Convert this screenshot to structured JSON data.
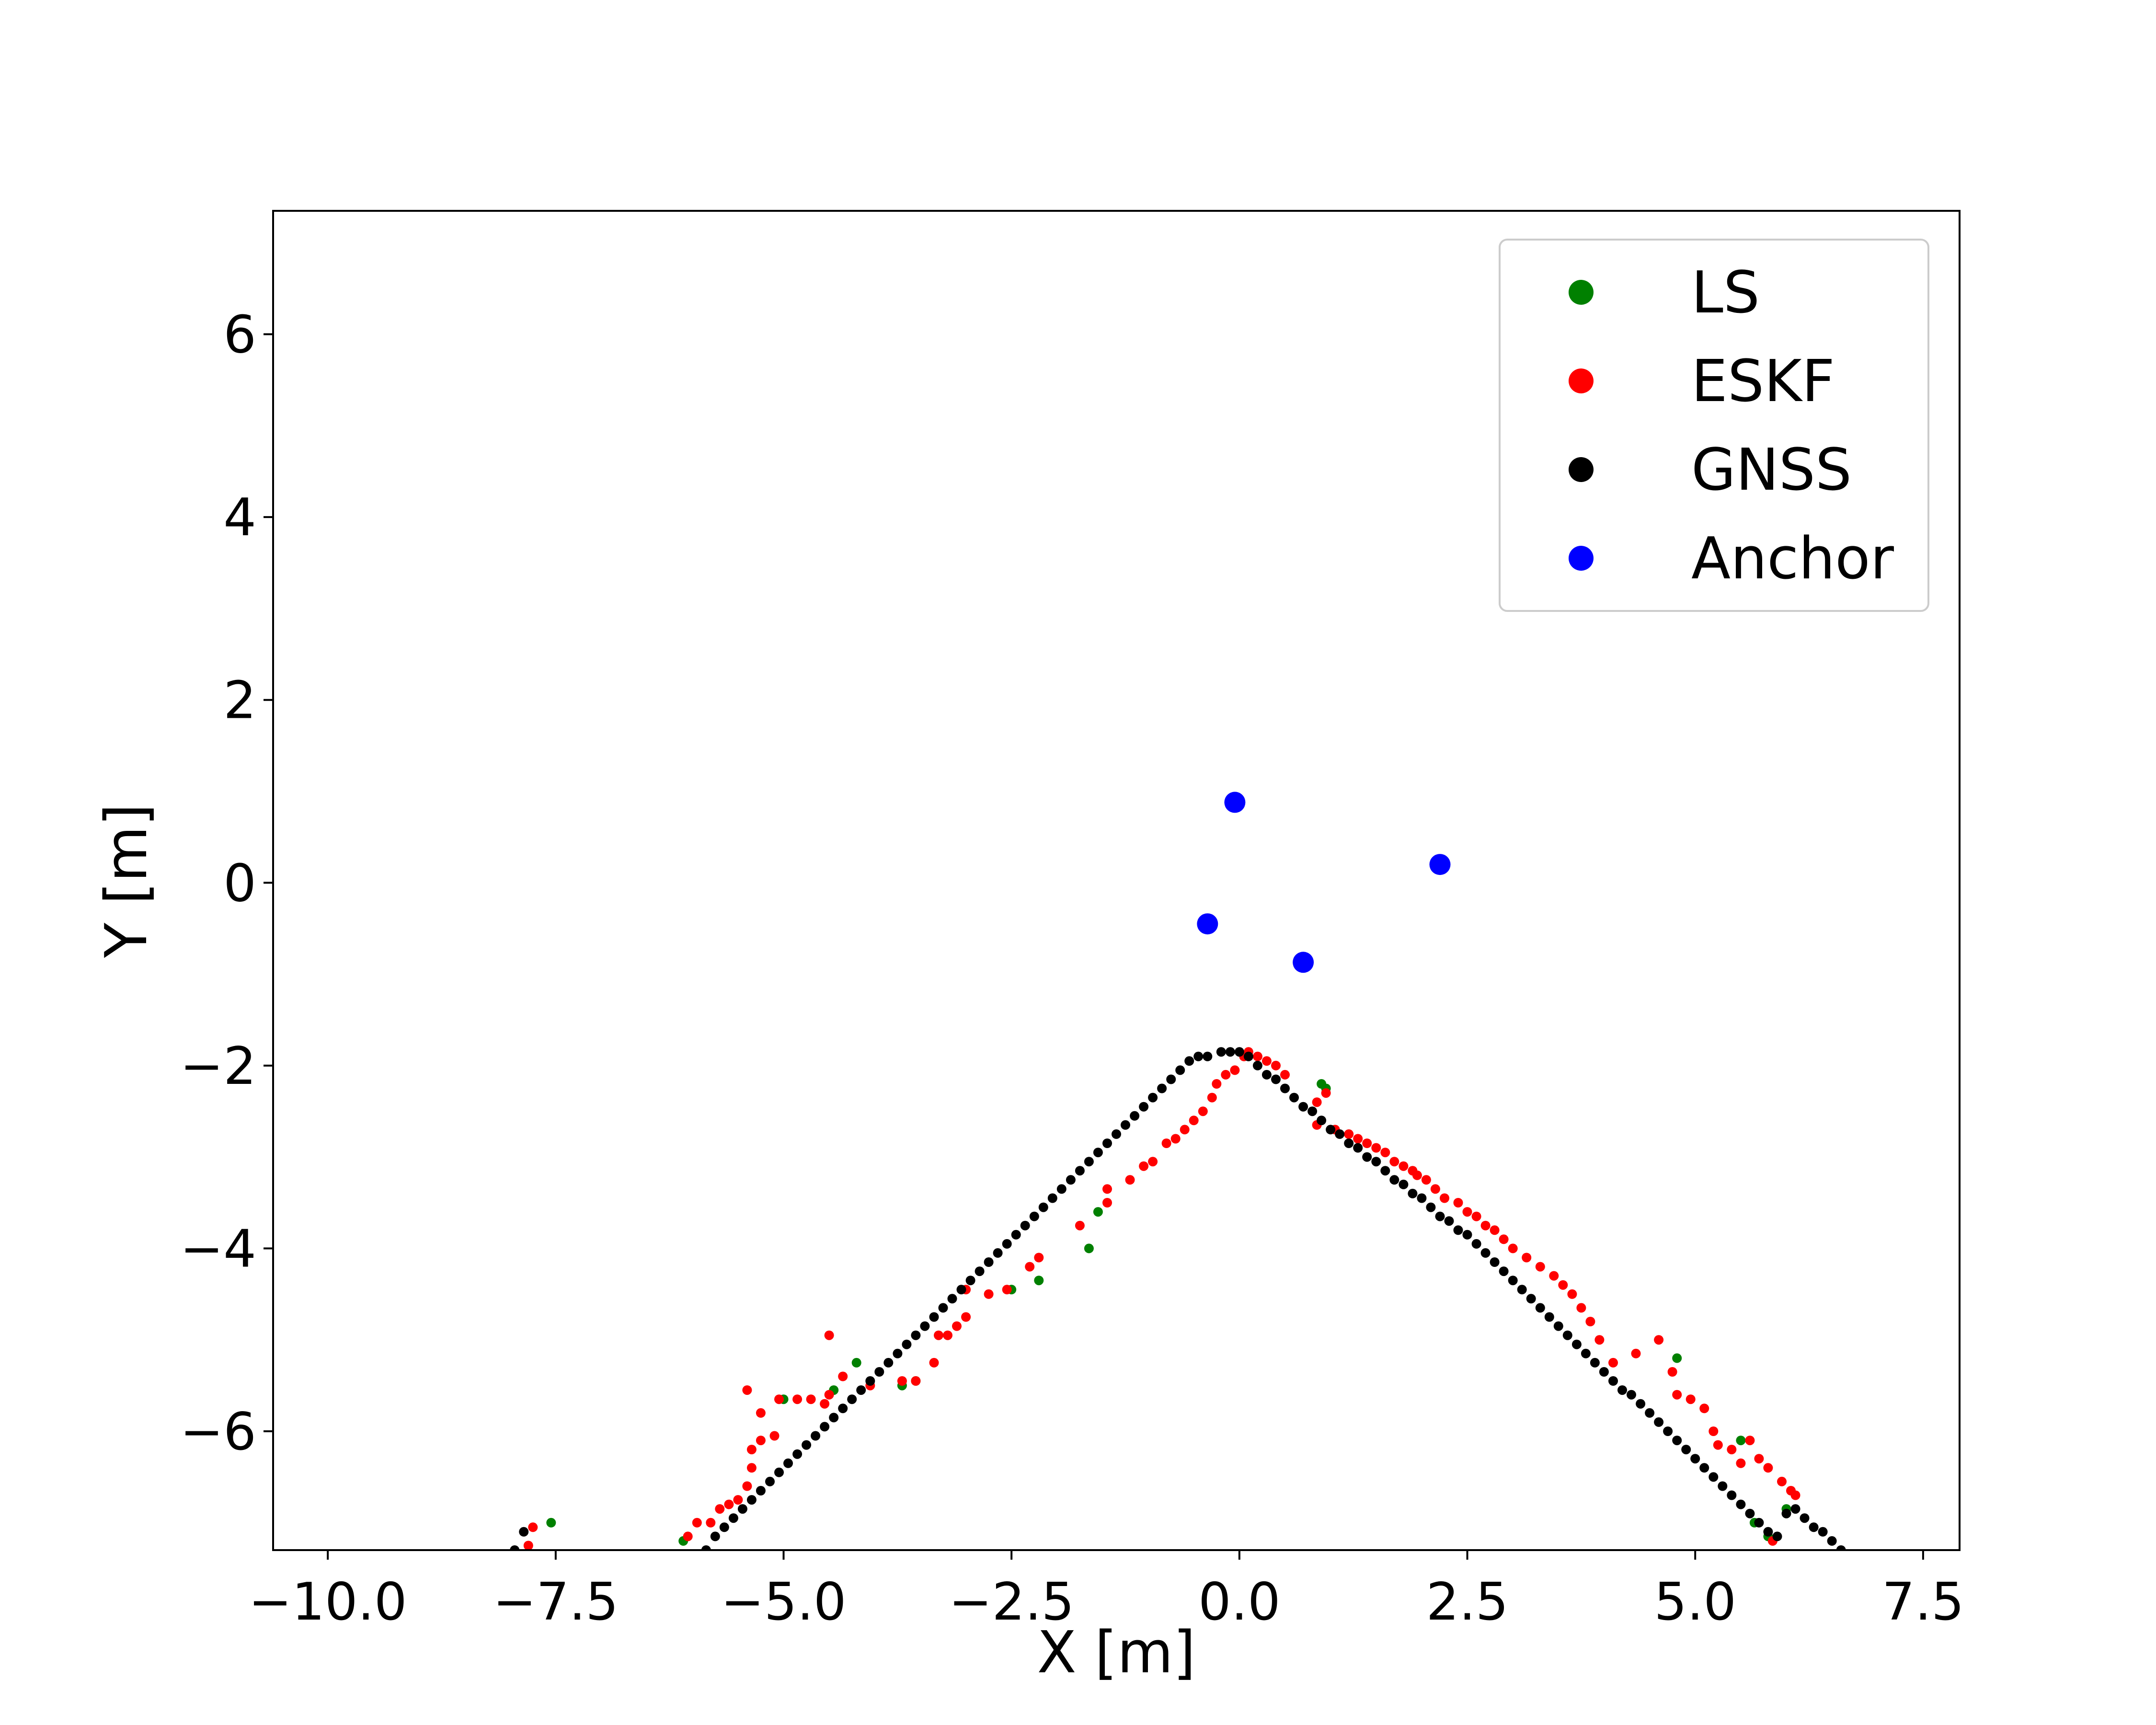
{
  "chart_data": {
    "type": "scatter",
    "xlabel": "X [m]",
    "ylabel": "Y [m]",
    "xlim": [
      -10.6,
      7.9
    ],
    "ylim": [
      -7.3,
      7.35
    ],
    "xticks": [
      -10.0,
      -7.5,
      -5.0,
      -2.5,
      0.0,
      2.5,
      5.0,
      7.5
    ],
    "xtick_labels": [
      "−10.0",
      "−7.5",
      "−5.0",
      "−2.5",
      "0.0",
      "2.5",
      "5.0",
      "7.5"
    ],
    "yticks": [
      -6,
      -4,
      -2,
      0,
      2,
      4,
      6
    ],
    "ytick_labels": [
      "−6",
      "−4",
      "−2",
      "0",
      "2",
      "4",
      "6"
    ],
    "grid": false,
    "legend_position": "top-right",
    "series": [
      {
        "name": "LS",
        "color": "#008000",
        "size": "small",
        "points": [
          [
            -7.55,
            -7.0
          ],
          [
            -6.1,
            -7.2
          ],
          [
            -5.0,
            -5.65
          ],
          [
            -4.45,
            -5.55
          ],
          [
            -4.2,
            -5.25
          ],
          [
            -3.7,
            -5.5
          ],
          [
            -3.55,
            -5.45
          ],
          [
            -2.5,
            -4.45
          ],
          [
            -2.2,
            -4.35
          ],
          [
            -1.65,
            -4.0
          ],
          [
            -1.55,
            -3.6
          ],
          [
            0.9,
            -2.2
          ],
          [
            0.95,
            -2.25
          ],
          [
            5.65,
            -7.0
          ],
          [
            5.8,
            -7.15
          ],
          [
            6.0,
            -6.85
          ],
          [
            5.5,
            -6.1
          ],
          [
            4.8,
            -5.2
          ]
        ]
      },
      {
        "name": "ESKF",
        "color": "#ff0000",
        "size": "small",
        "points": [
          [
            -7.75,
            -7.05
          ],
          [
            -7.8,
            -7.25
          ],
          [
            -6.05,
            -7.15
          ],
          [
            -5.95,
            -7.0
          ],
          [
            -5.8,
            -7.0
          ],
          [
            -5.7,
            -6.85
          ],
          [
            -5.6,
            -6.8
          ],
          [
            -5.5,
            -6.75
          ],
          [
            -5.4,
            -6.6
          ],
          [
            -5.35,
            -6.4
          ],
          [
            -5.35,
            -6.2
          ],
          [
            -5.25,
            -6.1
          ],
          [
            -5.1,
            -6.05
          ],
          [
            -5.25,
            -5.8
          ],
          [
            -5.4,
            -5.55
          ],
          [
            -5.05,
            -5.65
          ],
          [
            -4.85,
            -5.65
          ],
          [
            -4.7,
            -5.65
          ],
          [
            -4.55,
            -5.7
          ],
          [
            -4.5,
            -5.6
          ],
          [
            -4.5,
            -4.95
          ],
          [
            -4.35,
            -5.4
          ],
          [
            -4.05,
            -5.5
          ],
          [
            -3.7,
            -5.45
          ],
          [
            -3.55,
            -5.45
          ],
          [
            -3.35,
            -5.25
          ],
          [
            -3.3,
            -4.95
          ],
          [
            -3.2,
            -4.95
          ],
          [
            -3.1,
            -4.85
          ],
          [
            -3.0,
            -4.75
          ],
          [
            -3.0,
            -4.45
          ],
          [
            -2.75,
            -4.5
          ],
          [
            -2.55,
            -4.45
          ],
          [
            -2.3,
            -4.2
          ],
          [
            -2.2,
            -4.1
          ],
          [
            -1.75,
            -3.75
          ],
          [
            -1.45,
            -3.5
          ],
          [
            -1.45,
            -3.35
          ],
          [
            -1.2,
            -3.25
          ],
          [
            -1.05,
            -3.1
          ],
          [
            -0.95,
            -3.05
          ],
          [
            -0.8,
            -2.85
          ],
          [
            -0.7,
            -2.8
          ],
          [
            -0.6,
            -2.7
          ],
          [
            -0.5,
            -2.6
          ],
          [
            -0.4,
            -2.5
          ],
          [
            -0.3,
            -2.35
          ],
          [
            -0.25,
            -2.2
          ],
          [
            -0.15,
            -2.1
          ],
          [
            -0.05,
            -2.05
          ],
          [
            0.05,
            -1.9
          ],
          [
            0.1,
            -1.85
          ],
          [
            0.2,
            -1.9
          ],
          [
            0.3,
            -1.95
          ],
          [
            0.4,
            -2.0
          ],
          [
            0.5,
            -2.1
          ],
          [
            0.85,
            -2.4
          ],
          [
            0.95,
            -2.3
          ],
          [
            0.85,
            -2.65
          ],
          [
            1.05,
            -2.7
          ],
          [
            1.2,
            -2.75
          ],
          [
            1.3,
            -2.8
          ],
          [
            1.4,
            -2.85
          ],
          [
            1.5,
            -2.9
          ],
          [
            1.6,
            -2.95
          ],
          [
            1.7,
            -3.05
          ],
          [
            1.8,
            -3.1
          ],
          [
            1.9,
            -3.15
          ],
          [
            1.95,
            -3.2
          ],
          [
            2.05,
            -3.25
          ],
          [
            2.15,
            -3.35
          ],
          [
            2.25,
            -3.45
          ],
          [
            2.4,
            -3.5
          ],
          [
            2.5,
            -3.6
          ],
          [
            2.6,
            -3.65
          ],
          [
            2.7,
            -3.75
          ],
          [
            2.8,
            -3.8
          ],
          [
            2.9,
            -3.9
          ],
          [
            3.0,
            -4.0
          ],
          [
            3.15,
            -4.1
          ],
          [
            3.3,
            -4.2
          ],
          [
            3.45,
            -4.3
          ],
          [
            3.55,
            -4.4
          ],
          [
            3.65,
            -4.5
          ],
          [
            3.75,
            -4.65
          ],
          [
            3.85,
            -4.8
          ],
          [
            3.95,
            -5.0
          ],
          [
            4.1,
            -5.25
          ],
          [
            4.35,
            -5.15
          ],
          [
            4.6,
            -5.0
          ],
          [
            4.75,
            -5.35
          ],
          [
            4.8,
            -5.6
          ],
          [
            4.95,
            -5.65
          ],
          [
            5.1,
            -5.75
          ],
          [
            5.2,
            -6.0
          ],
          [
            5.25,
            -6.15
          ],
          [
            5.4,
            -6.2
          ],
          [
            5.5,
            -6.35
          ],
          [
            5.7,
            -6.3
          ],
          [
            5.8,
            -6.4
          ],
          [
            5.95,
            -6.55
          ],
          [
            6.05,
            -6.65
          ],
          [
            6.1,
            -6.7
          ],
          [
            5.85,
            -7.2
          ],
          [
            5.6,
            -6.1
          ]
        ]
      },
      {
        "name": "GNSS",
        "color": "#000000",
        "size": "small",
        "points": [
          [
            -7.95,
            -7.3
          ],
          [
            -7.85,
            -7.1
          ],
          [
            -5.85,
            -7.3
          ],
          [
            -5.75,
            -7.15
          ],
          [
            -5.65,
            -7.05
          ],
          [
            -5.55,
            -6.95
          ],
          [
            -5.45,
            -6.85
          ],
          [
            -5.35,
            -6.75
          ],
          [
            -5.25,
            -6.65
          ],
          [
            -5.15,
            -6.55
          ],
          [
            -5.05,
            -6.45
          ],
          [
            -4.95,
            -6.35
          ],
          [
            -4.85,
            -6.25
          ],
          [
            -4.75,
            -6.15
          ],
          [
            -4.65,
            -6.05
          ],
          [
            -4.55,
            -5.95
          ],
          [
            -4.45,
            -5.85
          ],
          [
            -4.35,
            -5.75
          ],
          [
            -4.25,
            -5.65
          ],
          [
            -4.15,
            -5.55
          ],
          [
            -4.05,
            -5.45
          ],
          [
            -3.95,
            -5.35
          ],
          [
            -3.85,
            -5.25
          ],
          [
            -3.75,
            -5.15
          ],
          [
            -3.65,
            -5.05
          ],
          [
            -3.55,
            -4.95
          ],
          [
            -3.45,
            -4.85
          ],
          [
            -3.35,
            -4.75
          ],
          [
            -3.25,
            -4.65
          ],
          [
            -3.15,
            -4.55
          ],
          [
            -3.05,
            -4.45
          ],
          [
            -2.95,
            -4.35
          ],
          [
            -2.85,
            -4.25
          ],
          [
            -2.75,
            -4.15
          ],
          [
            -2.65,
            -4.05
          ],
          [
            -2.55,
            -3.95
          ],
          [
            -2.45,
            -3.85
          ],
          [
            -2.35,
            -3.75
          ],
          [
            -2.25,
            -3.65
          ],
          [
            -2.15,
            -3.55
          ],
          [
            -2.05,
            -3.45
          ],
          [
            -1.95,
            -3.35
          ],
          [
            -1.85,
            -3.25
          ],
          [
            -1.75,
            -3.15
          ],
          [
            -1.65,
            -3.05
          ],
          [
            -1.55,
            -2.95
          ],
          [
            -1.45,
            -2.85
          ],
          [
            -1.35,
            -2.75
          ],
          [
            -1.25,
            -2.65
          ],
          [
            -1.15,
            -2.55
          ],
          [
            -1.05,
            -2.45
          ],
          [
            -0.95,
            -2.35
          ],
          [
            -0.85,
            -2.25
          ],
          [
            -0.75,
            -2.15
          ],
          [
            -0.65,
            -2.05
          ],
          [
            -0.55,
            -1.95
          ],
          [
            -0.45,
            -1.9
          ],
          [
            -0.35,
            -1.9
          ],
          [
            -0.2,
            -1.85
          ],
          [
            -0.1,
            -1.85
          ],
          [
            0.0,
            -1.85
          ],
          [
            0.1,
            -1.9
          ],
          [
            0.2,
            -2.0
          ],
          [
            0.3,
            -2.1
          ],
          [
            0.4,
            -2.15
          ],
          [
            0.5,
            -2.25
          ],
          [
            0.6,
            -2.35
          ],
          [
            0.7,
            -2.45
          ],
          [
            0.8,
            -2.5
          ],
          [
            0.9,
            -2.6
          ],
          [
            1.0,
            -2.7
          ],
          [
            1.1,
            -2.75
          ],
          [
            1.2,
            -2.85
          ],
          [
            1.3,
            -2.9
          ],
          [
            1.4,
            -3.0
          ],
          [
            1.5,
            -3.05
          ],
          [
            1.6,
            -3.15
          ],
          [
            1.7,
            -3.25
          ],
          [
            1.8,
            -3.3
          ],
          [
            1.9,
            -3.4
          ],
          [
            2.0,
            -3.45
          ],
          [
            2.1,
            -3.55
          ],
          [
            2.2,
            -3.65
          ],
          [
            2.3,
            -3.7
          ],
          [
            2.4,
            -3.8
          ],
          [
            2.5,
            -3.85
          ],
          [
            2.6,
            -3.95
          ],
          [
            2.7,
            -4.05
          ],
          [
            2.8,
            -4.15
          ],
          [
            2.9,
            -4.25
          ],
          [
            3.0,
            -4.35
          ],
          [
            3.1,
            -4.45
          ],
          [
            3.2,
            -4.55
          ],
          [
            3.3,
            -4.65
          ],
          [
            3.4,
            -4.75
          ],
          [
            3.5,
            -4.85
          ],
          [
            3.6,
            -4.95
          ],
          [
            3.7,
            -5.05
          ],
          [
            3.8,
            -5.15
          ],
          [
            3.9,
            -5.25
          ],
          [
            4.0,
            -5.35
          ],
          [
            4.1,
            -5.45
          ],
          [
            4.2,
            -5.55
          ],
          [
            4.3,
            -5.6
          ],
          [
            4.4,
            -5.7
          ],
          [
            4.5,
            -5.8
          ],
          [
            4.6,
            -5.9
          ],
          [
            4.7,
            -6.0
          ],
          [
            4.8,
            -6.1
          ],
          [
            4.9,
            -6.2
          ],
          [
            5.0,
            -6.3
          ],
          [
            5.1,
            -6.4
          ],
          [
            5.2,
            -6.5
          ],
          [
            5.3,
            -6.6
          ],
          [
            5.4,
            -6.7
          ],
          [
            5.5,
            -6.8
          ],
          [
            5.6,
            -6.9
          ],
          [
            5.7,
            -7.0
          ],
          [
            5.8,
            -7.1
          ],
          [
            5.9,
            -7.15
          ],
          [
            6.0,
            -6.9
          ],
          [
            6.1,
            -6.85
          ],
          [
            6.2,
            -6.95
          ],
          [
            6.3,
            -7.05
          ],
          [
            6.4,
            -7.1
          ],
          [
            6.5,
            -7.2
          ],
          [
            6.6,
            -7.3
          ]
        ]
      },
      {
        "name": "Anchor",
        "color": "#0000ff",
        "size": "large",
        "points": [
          [
            -0.05,
            0.88
          ],
          [
            2.2,
            0.2
          ],
          [
            -0.35,
            -0.45
          ],
          [
            0.7,
            -0.87
          ]
        ]
      }
    ]
  }
}
